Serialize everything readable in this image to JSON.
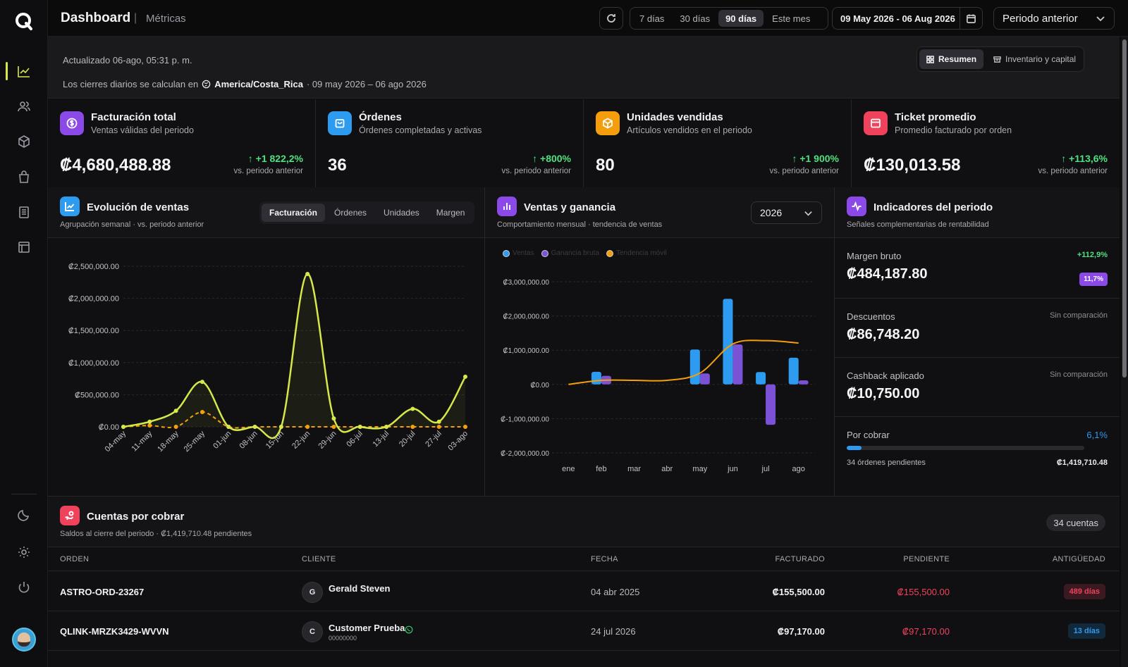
{
  "header": {
    "title": "Dashboard",
    "separator": "|",
    "subtitle": "Métricas",
    "ranges": [
      {
        "label": "7 días",
        "active": false
      },
      {
        "label": "30 días",
        "active": false
      },
      {
        "label": "90 días",
        "active": true
      },
      {
        "label": "Este mes",
        "active": false
      }
    ],
    "date_range": "09 May 2026 - 06 Aug 2026",
    "compare": "Periodo anterior"
  },
  "info": {
    "updated": "Actualizado 06-ago, 05:31 p. m.",
    "tz_prefix": "Los cierres diarios se calculan en",
    "tz_name": "America/Costa_Rica",
    "tz_range": "· 09 may 2026 – 06 ago 2026",
    "view_tabs": [
      "Resumen",
      "Inventario y capital"
    ]
  },
  "kpis": [
    {
      "title": "Facturación total",
      "desc": "Ventas válidas del periodo",
      "value": "₡4,680,488.88",
      "delta": "↑ +1 822,2%",
      "vs": "vs. periodo anterior",
      "color": "#8b4ae8",
      "icon": "dollar-icon"
    },
    {
      "title": "Órdenes",
      "desc": "Órdenes completadas y activas",
      "value": "36",
      "delta": "↑ +800%",
      "vs": "vs. periodo anterior",
      "color": "#2d9bf0",
      "icon": "shopping-bag-icon"
    },
    {
      "title": "Unidades vendidas",
      "desc": "Artículos vendidos en el periodo",
      "value": "80",
      "delta": "↑ +1 900%",
      "vs": "vs. periodo anterior",
      "color": "#f59e0b",
      "icon": "box-icon"
    },
    {
      "title": "Ticket promedio",
      "desc": "Promedio facturado por orden",
      "value": "₡130,013.58",
      "delta": "↑ +113,6%",
      "vs": "vs. periodo anterior",
      "color": "#f0425b",
      "icon": "receipt-icon"
    }
  ],
  "sales_panel": {
    "title": "Evolución de ventas",
    "subtitle": "Agrupación semanal · vs. periodo anterior",
    "tabs": [
      "Facturación",
      "Órdenes",
      "Unidades",
      "Margen"
    ],
    "active_tab": "Facturación"
  },
  "profit_panel": {
    "title": "Ventas y ganancia",
    "subtitle": "Comportamiento mensual · tendencia de ventas",
    "year": "2026",
    "legend": [
      "Ventas",
      "Ganancia bruta",
      "Tendencia móvil"
    ]
  },
  "indicators": {
    "title": "Indicadores del periodo",
    "subtitle": "Señales complementarias de rentabilidad",
    "margin": {
      "label": "Margen bruto",
      "value": "₡484,187.80",
      "delta": "+112,9%",
      "badge": "11,7%"
    },
    "discounts": {
      "label": "Descuentos",
      "value": "₡86,748.20",
      "note": "Sin comparación"
    },
    "cashback": {
      "label": "Cashback aplicado",
      "value": "₡10,750.00",
      "note": "Sin comparación"
    },
    "receivable": {
      "label": "Por cobrar",
      "pct": "6,1%",
      "progress": 0.061,
      "left": "34 órdenes pendientes",
      "right": "₡1,419,710.48"
    }
  },
  "accounts": {
    "title": "Cuentas por cobrar",
    "subtitle": "Saldos al cierre del periodo · ₡1,419,710.48 pendientes",
    "count": "34 cuentas",
    "columns": [
      "ORDEN",
      "CLIENTE",
      "FECHA",
      "FACTURADO",
      "PENDIENTE",
      "ANTIGÜEDAD"
    ],
    "rows": [
      {
        "order": "ASTRO-ORD-23267",
        "initial": "G",
        "client": "Gerald Steven",
        "phone": "",
        "date": "04 abr 2025",
        "billed": "₡155,500.00",
        "pending": "₡155,500.00",
        "age": "489 días",
        "age_color": "#f0425b"
      },
      {
        "order": "QLINK-MRZK3429-WVVN",
        "initial": "C",
        "client": "Customer Prueba",
        "phone": "00000000",
        "date": "24 jul 2026",
        "billed": "₡97,170.00",
        "pending": "₡97,170.00",
        "age": "13 días",
        "age_color": "#2d9bf0"
      }
    ]
  },
  "chart_data": [
    {
      "type": "line",
      "title": "Evolución de ventas",
      "categories": [
        "04-may",
        "11-may",
        "18-may",
        "25-may",
        "01-jun",
        "08-jun",
        "15-jun",
        "22-jun",
        "29-jun",
        "06-jul",
        "13-jul",
        "20-jul",
        "27-jul",
        "03-ago"
      ],
      "series": [
        {
          "values": [
            0,
            80000,
            250000,
            700000,
            0,
            0,
            0,
            2380000,
            130000,
            0,
            0,
            280000,
            80000,
            780000
          ],
          "color": "#d7e84a"
        },
        {
          "values": [
            0,
            20000,
            0,
            230000,
            0,
            0,
            0,
            0,
            0,
            0,
            0,
            0,
            0,
            0
          ],
          "color": "#f59e0b"
        }
      ],
      "yticks": [
        "₡0.00",
        "₡500,000.00",
        "₡1,000,000.00",
        "₡1,500,000.00",
        "₡2,000,000.00",
        "₡2,500,000.00"
      ],
      "ylim": [
        0,
        2500000
      ],
      "grid": true
    },
    {
      "type": "bar",
      "title": "Ventas y ganancia",
      "categories": [
        "ene",
        "feb",
        "mar",
        "abr",
        "may",
        "jun",
        "jul",
        "ago"
      ],
      "series": [
        {
          "name": "Ventas",
          "values": [
            0,
            370000,
            0,
            0,
            1020000,
            2500000,
            360000,
            780000
          ],
          "color": "#2d9bf0"
        },
        {
          "name": "Ganancia bruta",
          "values": [
            0,
            250000,
            0,
            0,
            320000,
            1170000,
            -1180000,
            120000
          ],
          "color": "#7b52d6"
        },
        {
          "name": "Tendencia móvil",
          "values": [
            0,
            120000,
            120000,
            120000,
            330000,
            1180000,
            1280000,
            1210000
          ],
          "color": "#f59e0b"
        }
      ],
      "yticks": [
        "₡-2,000,000.00",
        "₡-1,000,000.00",
        "₡0.00",
        "₡1,000,000.00",
        "₡2,000,000.00",
        "₡3,000,000.00"
      ],
      "ylim": [
        -2000000,
        3000000
      ],
      "grid": true,
      "legend": "top-left"
    }
  ]
}
